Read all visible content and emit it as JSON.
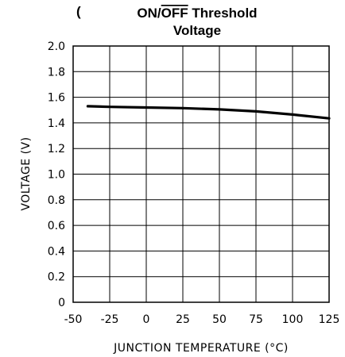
{
  "chart_data": {
    "type": "line",
    "title_prefix": "(",
    "title_line1_on": "ON/",
    "title_line1_off": "OFF",
    "title_line1_rest": " Threshold",
    "title_line2": "Voltage",
    "xlabel": "JUNCTION TEMPERATURE (°C)",
    "ylabel": "VOLTAGE (V)",
    "xlim": [
      -50,
      125
    ],
    "ylim": [
      0,
      2.0
    ],
    "x_ticks": [
      "-50",
      "-25",
      "0",
      "25",
      "50",
      "75",
      "100",
      "125"
    ],
    "y_ticks": [
      "0",
      "0.2",
      "0.4",
      "0.6",
      "0.8",
      "1.0",
      "1.2",
      "1.4",
      "1.6",
      "1.8",
      "2.0"
    ],
    "grid": true,
    "series": [
      {
        "x": [
          -40,
          -25,
          0,
          25,
          50,
          75,
          100,
          125
        ],
        "y": [
          1.53,
          1.525,
          1.52,
          1.515,
          1.505,
          1.49,
          1.465,
          1.435
        ]
      }
    ]
  }
}
